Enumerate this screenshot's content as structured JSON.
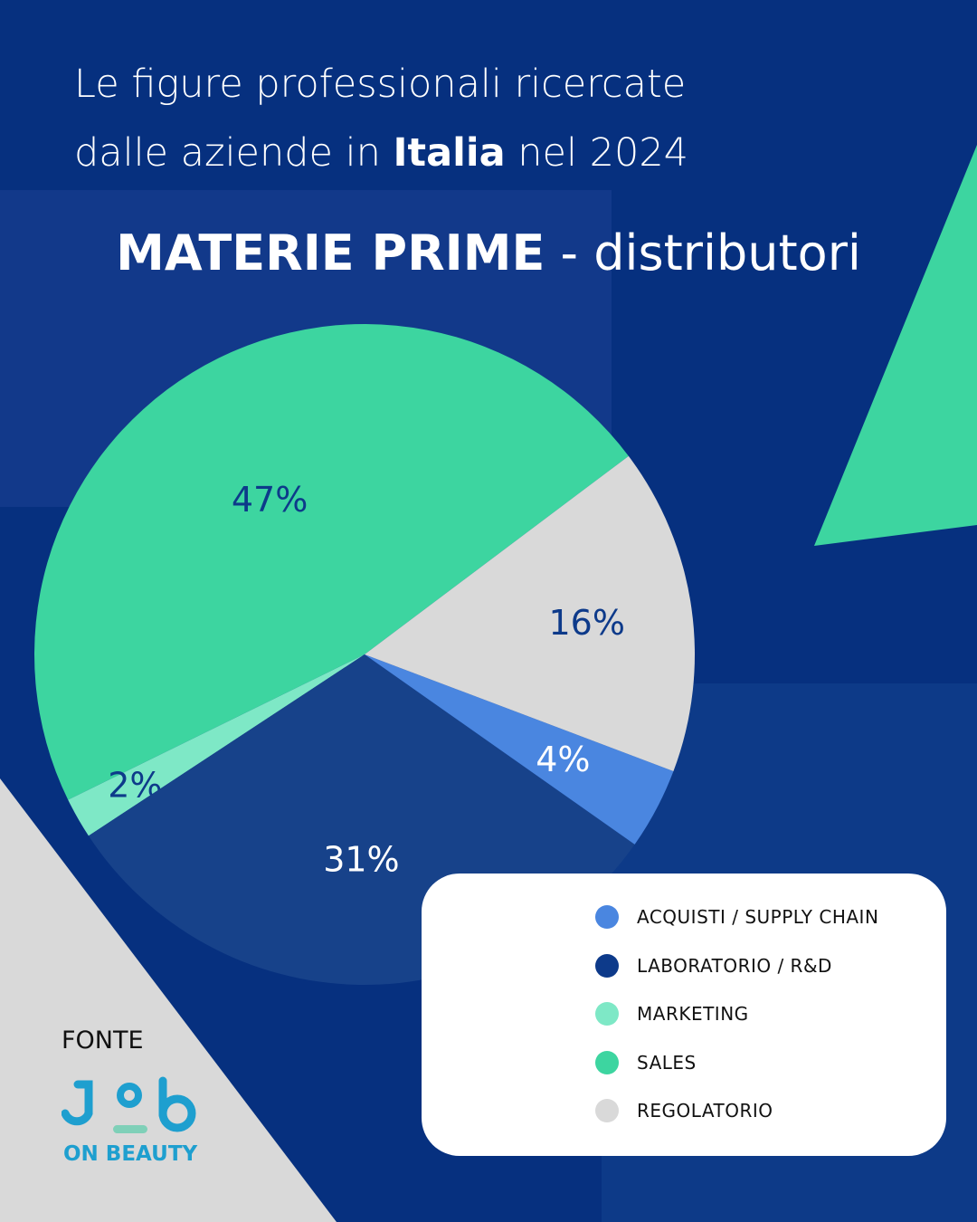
{
  "header": {
    "title_line1": "Le figure professionali ricercate",
    "title_line2_pre": "dalle aziende in ",
    "title_line2_bold": "Italia",
    "title_line2_post": " nel  2024"
  },
  "chart_data": {
    "type": "pie",
    "title_bold": "MATERIE PRIME",
    "title_rest": " - distributori",
    "slices": [
      {
        "name": "SALES",
        "value": 47,
        "label": "47%",
        "color": "#3dd5a0",
        "label_color": "#0d3a8a"
      },
      {
        "name": "MARKETING",
        "value": 2,
        "label": "2%",
        "color": "#7ee8c6",
        "label_color": "#0d3a8a"
      },
      {
        "name": "LABORATORIO / R&D",
        "value": 31,
        "label": "31%",
        "color": "#17428a",
        "label_color": "#ffffff"
      },
      {
        "name": "ACQUISTI / SUPPLY CHAIN",
        "value": 4,
        "label": "4%",
        "color": "#4a86e0",
        "label_color": "#ffffff"
      },
      {
        "name": "REGOLATORIO",
        "value": 16,
        "label": "16%",
        "color": "#d9d9d9",
        "label_color": "#0d3a8a"
      }
    ],
    "legend": [
      {
        "label": "ACQUISTI / SUPPLY CHAIN",
        "color": "#4a86e0"
      },
      {
        "label": "LABORATORIO / R&D",
        "color": "#0d3a8a"
      },
      {
        "label": "MARKETING",
        "color": "#7ee8c6"
      },
      {
        "label": "SALES",
        "color": "#3dd5a0"
      },
      {
        "label": "REGOLATORIO",
        "color": "#d9d9d9"
      }
    ],
    "legend_position": "bottom-right"
  },
  "footer": {
    "source_label": "FONTE",
    "logo_text": "Job",
    "logo_sub": "ON BEAUTY"
  }
}
